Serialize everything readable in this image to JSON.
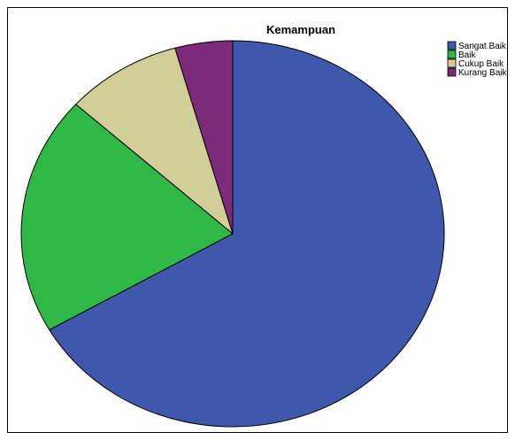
{
  "chart_data": {
    "type": "pie",
    "title": "Kemampuan",
    "categories": [
      "Sangat Baik",
      "Baik",
      "Cukup Baik",
      "Kurang Baik"
    ],
    "values": [
      66.7,
      20.0,
      8.9,
      4.4
    ],
    "colors": [
      "#3e58ac",
      "#2fb847",
      "#d3cd97",
      "#7c2a79"
    ],
    "legend_position": "top-right",
    "start_angle": "12 o'clock",
    "direction": "clockwise"
  }
}
